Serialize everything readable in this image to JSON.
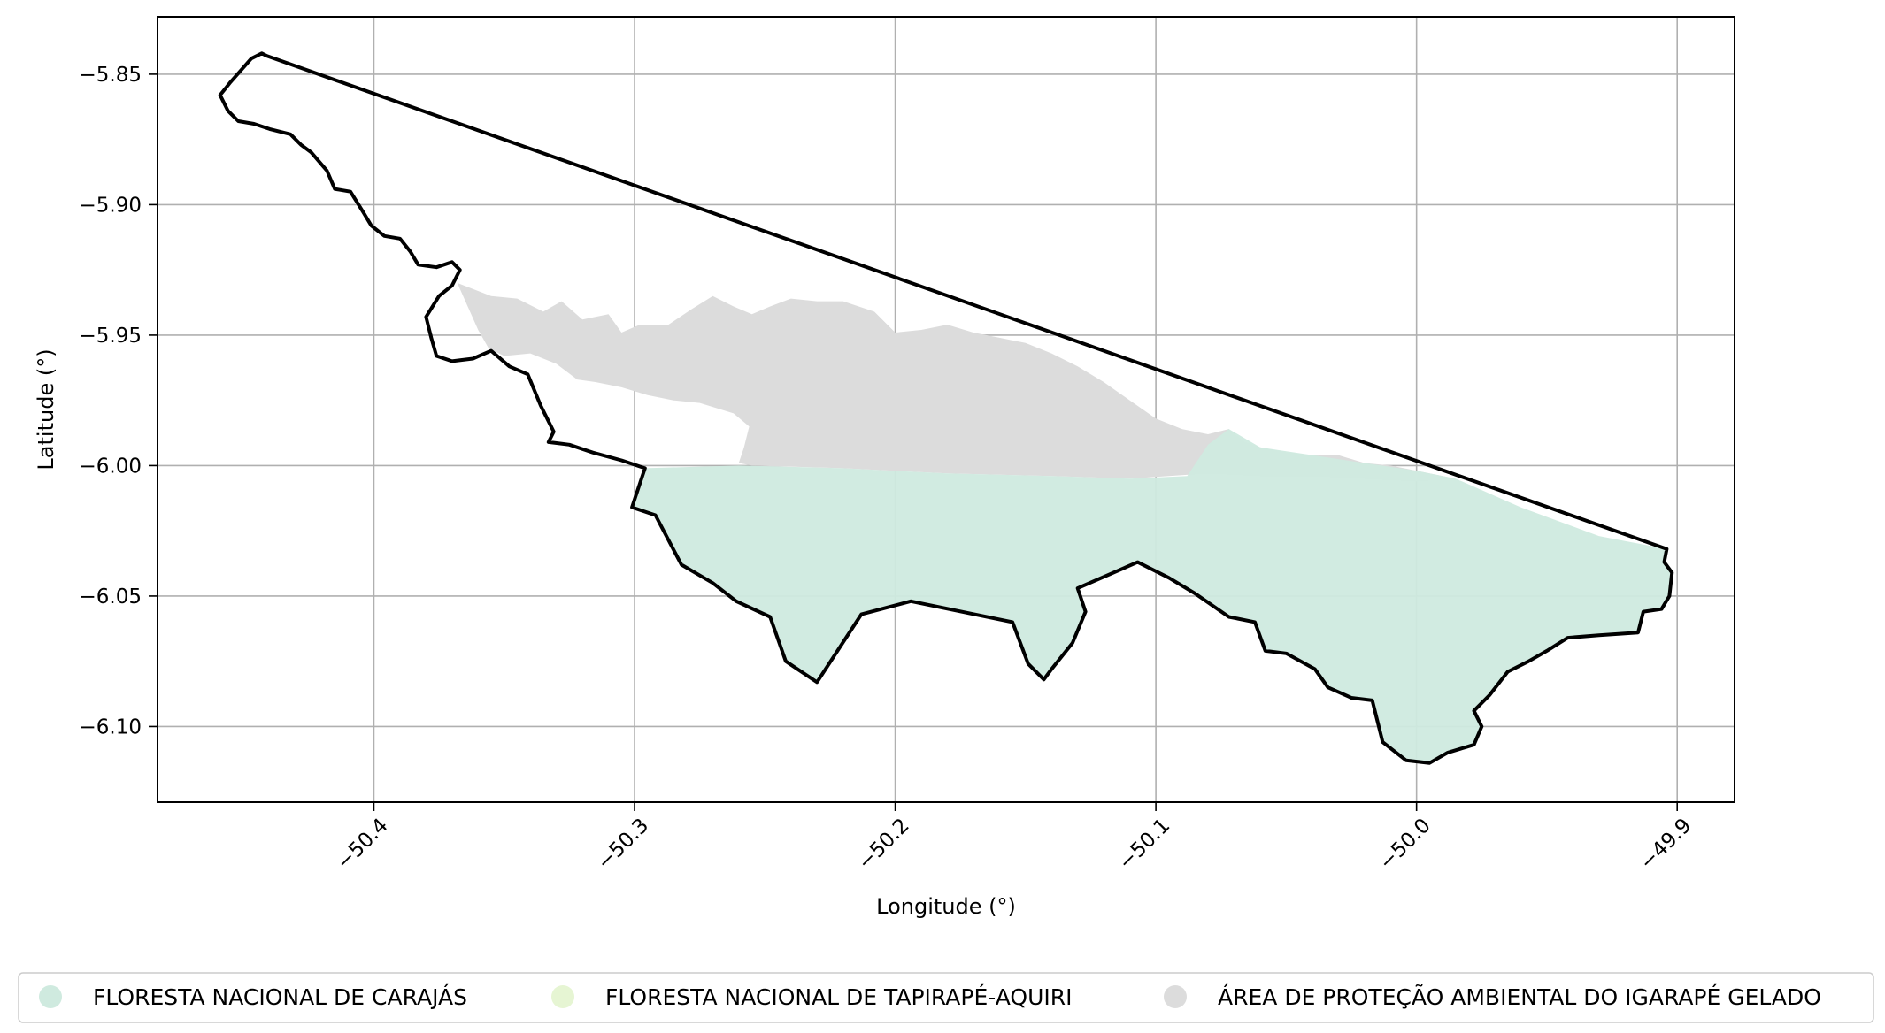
{
  "chart_data": {
    "type": "map",
    "title": "",
    "xlabel": "Longitude (°)",
    "ylabel": "Latitude (°)",
    "xlim": [
      -50.483,
      -49.878
    ],
    "ylim": [
      -6.129,
      -5.828
    ],
    "x_ticks": [
      -50.4,
      -50.3,
      -50.2,
      -50.1,
      -50.0,
      -49.9
    ],
    "x_tick_labels": [
      "−50.4",
      "−50.3",
      "−50.2",
      "−50.1",
      "−50.0",
      "−49.9"
    ],
    "y_ticks": [
      -5.85,
      -5.9,
      -5.95,
      -6.0,
      -6.05,
      -6.1
    ],
    "y_tick_labels": [
      "−5.85",
      "−5.90",
      "−5.95",
      "−6.00",
      "−6.05",
      "−6.10"
    ],
    "grid": true,
    "legend_position": "bottom",
    "legend": [
      {
        "label": "FLORESTA NACIONAL DE CARAJÁS",
        "color": "#cfeadf"
      },
      {
        "label": "FLORESTA NACIONAL DE TAPIRAPÉ-AQUIRI",
        "color": "#e6f5d3"
      },
      {
        "label": "ÁREA DE PROTEÇÃO AMBIENTAL DO IGARAPÉ GELADO",
        "color": "#dcdcdc"
      }
    ],
    "areas": [
      {
        "name": "ÁREA DE PROTEÇÃO AMBIENTAL DO IGARAPÉ GELADO",
        "color": "#dcdcdc",
        "coords": [
          [
            -50.368,
            -5.93
          ],
          [
            -50.355,
            -5.935
          ],
          [
            -50.345,
            -5.936
          ],
          [
            -50.335,
            -5.941
          ],
          [
            -50.328,
            -5.937
          ],
          [
            -50.32,
            -5.944
          ],
          [
            -50.31,
            -5.942
          ],
          [
            -50.305,
            -5.949
          ],
          [
            -50.298,
            -5.946
          ],
          [
            -50.287,
            -5.946
          ],
          [
            -50.278,
            -5.94
          ],
          [
            -50.27,
            -5.935
          ],
          [
            -50.262,
            -5.939
          ],
          [
            -50.255,
            -5.942
          ],
          [
            -50.248,
            -5.939
          ],
          [
            -50.24,
            -5.936
          ],
          [
            -50.23,
            -5.937
          ],
          [
            -50.22,
            -5.937
          ],
          [
            -50.208,
            -5.941
          ],
          [
            -50.2,
            -5.949
          ],
          [
            -50.19,
            -5.948
          ],
          [
            -50.18,
            -5.946
          ],
          [
            -50.17,
            -5.949
          ],
          [
            -50.16,
            -5.951
          ],
          [
            -50.15,
            -5.953
          ],
          [
            -50.14,
            -5.957
          ],
          [
            -50.13,
            -5.962
          ],
          [
            -50.12,
            -5.968
          ],
          [
            -50.11,
            -5.975
          ],
          [
            -50.1,
            -5.982
          ],
          [
            -50.09,
            -5.986
          ],
          [
            -50.08,
            -5.988
          ],
          [
            -50.072,
            -5.986
          ],
          [
            -50.066,
            -5.991
          ],
          [
            -50.06,
            -5.993
          ],
          [
            -50.05,
            -5.995
          ],
          [
            -50.04,
            -5.996
          ],
          [
            -50.03,
            -5.996
          ],
          [
            -50.02,
            -5.999
          ],
          [
            -50.01,
            -6.0
          ],
          [
            -50.0,
            -6.002
          ],
          [
            -49.99,
            -6.004
          ],
          [
            -49.985,
            -6.005
          ],
          [
            -50.0,
            -6.006
          ],
          [
            -50.02,
            -6.005
          ],
          [
            -50.04,
            -6.004
          ],
          [
            -50.06,
            -6.004
          ],
          [
            -50.08,
            -6.003
          ],
          [
            -50.11,
            -6.005
          ],
          [
            -50.14,
            -6.004
          ],
          [
            -50.18,
            -6.003
          ],
          [
            -50.22,
            -6.001
          ],
          [
            -50.255,
            -6.0
          ],
          [
            -50.26,
            -5.999
          ],
          [
            -50.258,
            -5.993
          ],
          [
            -50.256,
            -5.985
          ],
          [
            -50.262,
            -5.98
          ],
          [
            -50.275,
            -5.976
          ],
          [
            -50.285,
            -5.975
          ],
          [
            -50.295,
            -5.973
          ],
          [
            -50.305,
            -5.97
          ],
          [
            -50.315,
            -5.968
          ],
          [
            -50.322,
            -5.967
          ],
          [
            -50.33,
            -5.961
          ],
          [
            -50.34,
            -5.957
          ],
          [
            -50.35,
            -5.958
          ],
          [
            -50.356,
            -5.955
          ],
          [
            -50.36,
            -5.948
          ],
          [
            -50.364,
            -5.939
          ]
        ]
      },
      {
        "name": "FLORESTA NACIONAL DE CARAJÁS",
        "color": "#cfeadf",
        "coords": [
          [
            -50.296,
            -6.001
          ],
          [
            -50.26,
            -6.0
          ],
          [
            -50.22,
            -6.001
          ],
          [
            -50.18,
            -6.003
          ],
          [
            -50.14,
            -6.004
          ],
          [
            -50.11,
            -6.005
          ],
          [
            -50.088,
            -6.004
          ],
          [
            -50.08,
            -5.992
          ],
          [
            -50.072,
            -5.986
          ],
          [
            -50.06,
            -5.993
          ],
          [
            -50.04,
            -5.996
          ],
          [
            -50.02,
            -5.999
          ],
          [
            -50.0,
            -6.002
          ],
          [
            -49.985,
            -6.005
          ],
          [
            -49.96,
            -6.016
          ],
          [
            -49.93,
            -6.027
          ],
          [
            -49.904,
            -6.032
          ],
          [
            -49.905,
            -6.037
          ],
          [
            -49.902,
            -6.041
          ],
          [
            -49.903,
            -6.05
          ],
          [
            -49.906,
            -6.055
          ],
          [
            -49.913,
            -6.056
          ],
          [
            -49.915,
            -6.064
          ],
          [
            -49.93,
            -6.065
          ],
          [
            -49.942,
            -6.066
          ],
          [
            -49.95,
            -6.071
          ],
          [
            -49.957,
            -6.075
          ],
          [
            -49.965,
            -6.079
          ],
          [
            -49.972,
            -6.088
          ],
          [
            -49.978,
            -6.094
          ],
          [
            -49.975,
            -6.1
          ],
          [
            -49.978,
            -6.107
          ],
          [
            -49.988,
            -6.11
          ],
          [
            -49.995,
            -6.114
          ],
          [
            -50.004,
            -6.113
          ],
          [
            -50.013,
            -6.106
          ],
          [
            -50.017,
            -6.09
          ],
          [
            -50.025,
            -6.089
          ],
          [
            -50.034,
            -6.085
          ],
          [
            -50.039,
            -6.078
          ],
          [
            -50.05,
            -6.072
          ],
          [
            -50.058,
            -6.071
          ],
          [
            -50.062,
            -6.06
          ],
          [
            -50.072,
            -6.058
          ],
          [
            -50.085,
            -6.049
          ],
          [
            -50.095,
            -6.043
          ],
          [
            -50.107,
            -6.037
          ],
          [
            -50.13,
            -6.047
          ],
          [
            -50.127,
            -6.056
          ],
          [
            -50.132,
            -6.068
          ],
          [
            -50.14,
            -6.078
          ],
          [
            -50.143,
            -6.082
          ],
          [
            -50.149,
            -6.076
          ],
          [
            -50.155,
            -6.06
          ],
          [
            -50.194,
            -6.052
          ],
          [
            -50.213,
            -6.057
          ],
          [
            -50.23,
            -6.083
          ],
          [
            -50.242,
            -6.075
          ],
          [
            -50.248,
            -6.058
          ],
          [
            -50.261,
            -6.052
          ],
          [
            -50.27,
            -6.045
          ],
          [
            -50.282,
            -6.038
          ],
          [
            -50.292,
            -6.019
          ],
          [
            -50.301,
            -6.016
          ]
        ]
      }
    ],
    "boundary": {
      "color": "#000000",
      "coords": [
        [
          -50.441,
          -5.843
        ],
        [
          -50.443,
          -5.842
        ],
        [
          -50.447,
          -5.844
        ],
        [
          -50.455,
          -5.853
        ],
        [
          -50.459,
          -5.858
        ],
        [
          -50.456,
          -5.864
        ],
        [
          -50.452,
          -5.868
        ],
        [
          -50.446,
          -5.869
        ],
        [
          -50.44,
          -5.871
        ],
        [
          -50.432,
          -5.873
        ],
        [
          -50.428,
          -5.877
        ],
        [
          -50.424,
          -5.88
        ],
        [
          -50.418,
          -5.887
        ],
        [
          -50.415,
          -5.894
        ],
        [
          -50.409,
          -5.895
        ],
        [
          -50.404,
          -5.903
        ],
        [
          -50.401,
          -5.908
        ],
        [
          -50.396,
          -5.912
        ],
        [
          -50.39,
          -5.913
        ],
        [
          -50.386,
          -5.918
        ],
        [
          -50.383,
          -5.923
        ],
        [
          -50.376,
          -5.924
        ],
        [
          -50.37,
          -5.922
        ],
        [
          -50.367,
          -5.925
        ],
        [
          -50.37,
          -5.931
        ],
        [
          -50.375,
          -5.935
        ],
        [
          -50.38,
          -5.943
        ],
        [
          -50.378,
          -5.951
        ],
        [
          -50.376,
          -5.958
        ],
        [
          -50.37,
          -5.96
        ],
        [
          -50.362,
          -5.959
        ],
        [
          -50.355,
          -5.956
        ],
        [
          -50.348,
          -5.962
        ],
        [
          -50.341,
          -5.965
        ],
        [
          -50.336,
          -5.977
        ],
        [
          -50.333,
          -5.983
        ],
        [
          -50.331,
          -5.987
        ],
        [
          -50.333,
          -5.991
        ],
        [
          -50.325,
          -5.992
        ],
        [
          -50.316,
          -5.995
        ],
        [
          -50.305,
          -5.998
        ],
        [
          -50.296,
          -6.001
        ],
        [
          -50.301,
          -6.016
        ],
        [
          -50.292,
          -6.019
        ],
        [
          -50.282,
          -6.038
        ],
        [
          -50.27,
          -6.045
        ],
        [
          -50.261,
          -6.052
        ],
        [
          -50.248,
          -6.058
        ],
        [
          -50.242,
          -6.075
        ],
        [
          -50.23,
          -6.083
        ],
        [
          -50.213,
          -6.057
        ],
        [
          -50.194,
          -6.052
        ],
        [
          -50.155,
          -6.06
        ],
        [
          -50.149,
          -6.076
        ],
        [
          -50.143,
          -6.082
        ],
        [
          -50.14,
          -6.078
        ],
        [
          -50.132,
          -6.068
        ],
        [
          -50.127,
          -6.056
        ],
        [
          -50.13,
          -6.047
        ],
        [
          -50.107,
          -6.037
        ],
        [
          -50.095,
          -6.043
        ],
        [
          -50.085,
          -6.049
        ],
        [
          -50.072,
          -6.058
        ],
        [
          -50.062,
          -6.06
        ],
        [
          -50.058,
          -6.071
        ],
        [
          -50.05,
          -6.072
        ],
        [
          -50.039,
          -6.078
        ],
        [
          -50.034,
          -6.085
        ],
        [
          -50.025,
          -6.089
        ],
        [
          -50.017,
          -6.09
        ],
        [
          -50.013,
          -6.106
        ],
        [
          -50.004,
          -6.113
        ],
        [
          -49.995,
          -6.114
        ],
        [
          -49.988,
          -6.11
        ],
        [
          -49.978,
          -6.107
        ],
        [
          -49.975,
          -6.1
        ],
        [
          -49.978,
          -6.094
        ],
        [
          -49.972,
          -6.088
        ],
        [
          -49.965,
          -6.079
        ],
        [
          -49.957,
          -6.075
        ],
        [
          -49.95,
          -6.071
        ],
        [
          -49.942,
          -6.066
        ],
        [
          -49.93,
          -6.065
        ],
        [
          -49.915,
          -6.064
        ],
        [
          -49.913,
          -6.056
        ],
        [
          -49.906,
          -6.055
        ],
        [
          -49.903,
          -6.05
        ],
        [
          -49.902,
          -6.041
        ],
        [
          -49.905,
          -6.037
        ],
        [
          -49.904,
          -6.032
        ],
        [
          -50.441,
          -5.843
        ]
      ]
    }
  }
}
